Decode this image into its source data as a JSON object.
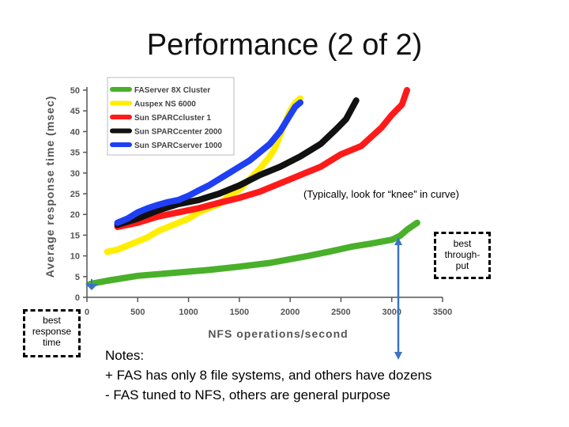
{
  "slide": {
    "title": "Performance (2 of 2)",
    "annotation": "(Typically, look for “knee” in curve)",
    "callout_throughput": [
      "best",
      "through-",
      "put"
    ],
    "callout_response": [
      "best",
      "response",
      "time"
    ],
    "notes": [
      "Notes:",
      "+ FAS has only 8 file systems, and others have dozens",
      "- FAS tuned to NFS, others are general purpose"
    ]
  },
  "chart_data": {
    "type": "line",
    "xlabel": "NFS operations/second",
    "ylabel": "Average response time (msec)",
    "xlim": [
      0,
      3500
    ],
    "ylim": [
      0,
      50
    ],
    "xticks": [
      0,
      500,
      1000,
      1500,
      2000,
      2500,
      3000,
      3500
    ],
    "yticks": [
      0,
      5,
      10,
      15,
      20,
      25,
      30,
      35,
      40,
      45,
      50
    ],
    "legend_position": "top-left",
    "series": [
      {
        "name": "FAServer 8X Cluster",
        "color": "#49b02a",
        "x": [
          30,
          200,
          500,
          800,
          1000,
          1200,
          1500,
          1800,
          2000,
          2200,
          2400,
          2600,
          2800,
          3000,
          3080,
          3150,
          3250
        ],
        "y": [
          3.2,
          4.0,
          5.2,
          5.8,
          6.2,
          6.6,
          7.4,
          8.3,
          9.2,
          10.1,
          11.1,
          12.2,
          13.0,
          13.9,
          14.8,
          16.3,
          18.0
        ]
      },
      {
        "name": "Auspex NS 6000",
        "color": "#ffee00",
        "x": [
          200,
          300,
          400,
          500,
          600,
          700,
          800,
          900,
          1000,
          1100,
          1200,
          1300,
          1400,
          1500,
          1600,
          1700,
          1800,
          1850,
          1900,
          1950,
          2000,
          2050,
          2100
        ],
        "y": [
          11,
          11.5,
          12.5,
          13.5,
          14.5,
          16,
          17,
          18,
          19,
          20.5,
          21.5,
          22.5,
          24.5,
          26,
          28.5,
          31,
          34,
          36,
          39,
          42,
          45,
          47,
          48
        ]
      },
      {
        "name": "Sun SPARCcluster 1",
        "color": "#ff1a1a",
        "x": [
          300,
          500,
          700,
          900,
          1100,
          1300,
          1500,
          1700,
          1900,
          2100,
          2300,
          2500,
          2700,
          2900,
          3000,
          3100,
          3150
        ],
        "y": [
          17,
          18,
          19.5,
          20.5,
          21.5,
          22.8,
          24,
          25.5,
          27.5,
          29.5,
          31.5,
          34.5,
          36.5,
          41,
          44,
          46.5,
          50
        ]
      },
      {
        "name": "Sun SPARCcenter 2000",
        "color": "#111111",
        "x": [
          300,
          500,
          700,
          900,
          1100,
          1300,
          1500,
          1700,
          1900,
          2100,
          2300,
          2450,
          2550,
          2650
        ],
        "y": [
          17.5,
          19,
          21,
          22.5,
          23.5,
          25,
          27,
          29.5,
          31.5,
          34,
          37,
          40.5,
          43,
          47.5
        ]
      },
      {
        "name": "Sun SPARCserver 1000",
        "color": "#1f3ff5",
        "x": [
          300,
          400,
          500,
          600,
          700,
          800,
          900,
          1000,
          1100,
          1200,
          1300,
          1400,
          1500,
          1600,
          1700,
          1800,
          1900,
          1950,
          2000,
          2050,
          2100
        ],
        "y": [
          18,
          19,
          20.5,
          21.5,
          22.3,
          23,
          23.5,
          24.5,
          25.8,
          27,
          28.5,
          30,
          31.5,
          33,
          35,
          37,
          40,
          42,
          44,
          46,
          47
        ]
      }
    ]
  }
}
